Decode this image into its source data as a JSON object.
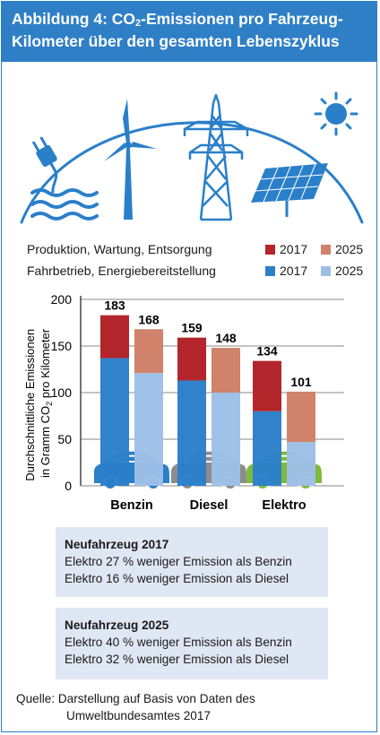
{
  "header": {
    "line1_pre": "Abbildung 4: CO",
    "line1_sub": "2",
    "line1_post": "-Emissionen pro Fahrzeug-",
    "line2": "Kilometer über den gesamten Lebenszyklus"
  },
  "legend": {
    "row1_label": "Produktion, Wartung, Entsorgung",
    "row2_label": "Fahrbetrieb, Energiebereitstellung",
    "year_2017": "2017",
    "year_2025": "2025",
    "colors": {
      "production_2017": "#b3262c",
      "production_2025": "#d0826b",
      "operation_2017": "#2a7fc9",
      "operation_2025": "#9dbfe7"
    }
  },
  "icons": [
    "plug-icon",
    "water-waves-icon",
    "wind-turbine-icon",
    "power-pylon-icon",
    "solar-panel-icon",
    "sun-icon"
  ],
  "chart_data": {
    "type": "bar",
    "stacked": true,
    "categories": [
      "Benzin",
      "Diesel",
      "Elektro"
    ],
    "ylabel_line1": "Durchschnittliche Emissionen",
    "ylabel_line2_pre": "in Gramm CO",
    "ylabel_line2_sub": "2",
    "ylabel_line2_post": " pro Kilometer",
    "ylim": [
      0,
      200
    ],
    "yticks": [
      0,
      50,
      100,
      150,
      200
    ],
    "grid": true,
    "groups": [
      {
        "category": "Benzin",
        "bars": [
          {
            "year": "2017",
            "operation": 137,
            "production": 46,
            "total": 183
          },
          {
            "year": "2025",
            "operation": 121,
            "production": 47,
            "total": 168
          }
        ],
        "car_color": "#2a7fc9"
      },
      {
        "category": "Diesel",
        "bars": [
          {
            "year": "2017",
            "operation": 113,
            "production": 46,
            "total": 159
          },
          {
            "year": "2025",
            "operation": 100,
            "production": 48,
            "total": 148
          }
        ],
        "car_color": "#8c8c8c"
      },
      {
        "category": "Elektro",
        "bars": [
          {
            "year": "2017",
            "operation": 80,
            "production": 54,
            "total": 134
          },
          {
            "year": "2025",
            "operation": 47,
            "production": 54,
            "total": 101
          }
        ],
        "car_color": "#7cbb3c"
      }
    ]
  },
  "info_boxes": [
    {
      "heading": "Neufahrzeug 2017",
      "lines": [
        "Elektro 27 % weniger Emission als Benzin",
        "Elektro 16 % weniger Emission als Diesel"
      ]
    },
    {
      "heading": "Neufahrzeug 2025",
      "lines": [
        "Elektro 40 % weniger Emission als Benzin",
        "Elektro 32 % weniger Emission als Diesel"
      ]
    }
  ],
  "source": {
    "line1": "Quelle: Darstellung auf Basis von Daten des",
    "line2": "Umweltbundesamtes 2017"
  }
}
